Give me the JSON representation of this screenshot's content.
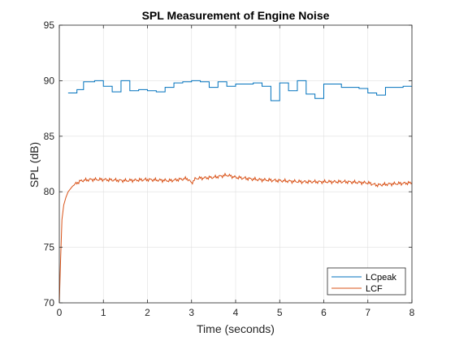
{
  "chart_data": {
    "type": "line",
    "title": "SPL Measurement of Engine Noise",
    "xlabel": "Time (seconds)",
    "ylabel": "SPL (dB)",
    "xlim": [
      0,
      8
    ],
    "ylim": [
      70,
      95
    ],
    "xticks": [
      0,
      1,
      2,
      3,
      4,
      5,
      6,
      7,
      8
    ],
    "yticks": [
      70,
      75,
      80,
      85,
      90,
      95
    ],
    "grid": true,
    "legend_position": "bottom-right",
    "series": [
      {
        "name": "LCpeak",
        "color": "#0072BD",
        "style": "step",
        "x": [
          0.2,
          0.4,
          0.55,
          0.8,
          1.0,
          1.2,
          1.4,
          1.6,
          1.8,
          2.0,
          2.2,
          2.4,
          2.6,
          2.8,
          3.0,
          3.2,
          3.4,
          3.6,
          3.8,
          4.0,
          4.2,
          4.4,
          4.6,
          4.8,
          5.0,
          5.2,
          5.4,
          5.6,
          5.8,
          6.0,
          6.2,
          6.4,
          6.6,
          6.8,
          7.0,
          7.2,
          7.4,
          7.6,
          7.8,
          8.0
        ],
        "y": [
          88.9,
          89.2,
          89.9,
          90.0,
          89.5,
          89.0,
          90.0,
          89.1,
          89.2,
          89.1,
          89.0,
          89.4,
          89.8,
          89.9,
          90.0,
          89.9,
          89.4,
          89.9,
          89.5,
          89.7,
          89.7,
          89.8,
          89.5,
          88.2,
          89.8,
          89.1,
          90.0,
          88.8,
          88.4,
          89.7,
          89.7,
          89.4,
          89.4,
          89.3,
          88.9,
          88.7,
          89.4,
          89.4,
          89.5,
          89.5
        ]
      },
      {
        "name": "LCF",
        "color": "#D95319",
        "style": "line",
        "x": [
          0.0,
          0.03,
          0.06,
          0.1,
          0.15,
          0.2,
          0.3,
          0.4,
          0.5,
          0.7,
          1.0,
          1.5,
          2.0,
          2.5,
          2.9,
          3.0,
          3.1,
          3.5,
          3.8,
          4.0,
          4.5,
          5.0,
          5.5,
          6.0,
          6.5,
          7.0,
          7.2,
          7.5,
          8.0
        ],
        "y": [
          70.0,
          74.0,
          77.5,
          78.8,
          79.5,
          80.0,
          80.5,
          80.8,
          81.0,
          81.1,
          81.1,
          81.0,
          81.1,
          81.0,
          81.2,
          80.8,
          81.2,
          81.3,
          81.5,
          81.3,
          81.1,
          81.0,
          80.9,
          80.9,
          80.9,
          80.8,
          80.6,
          80.7,
          80.8
        ]
      }
    ]
  }
}
